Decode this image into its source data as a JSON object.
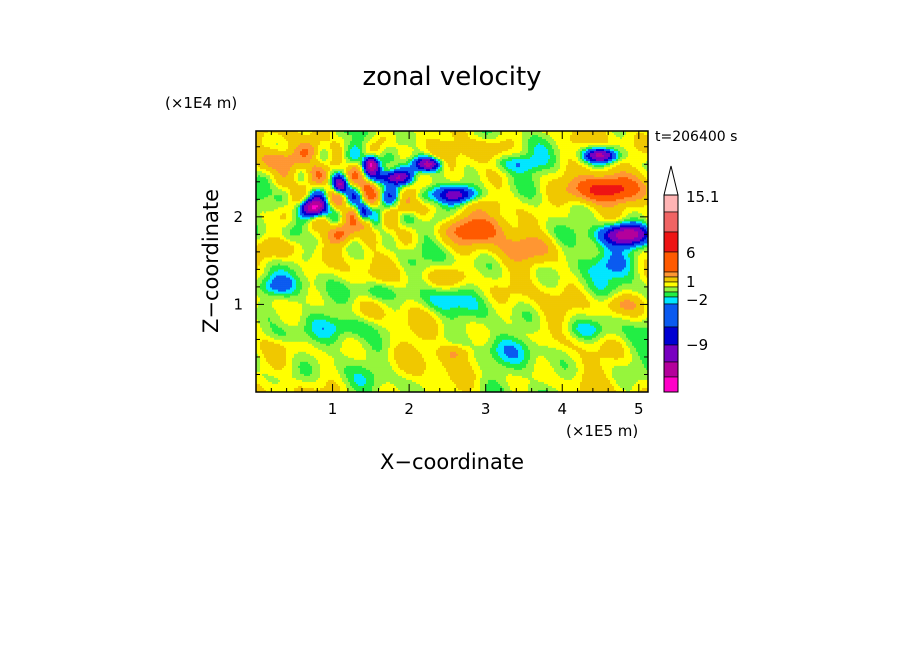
{
  "chart_data": {
    "type": "heatmap",
    "title": "zonal velocity",
    "xlabel": "X−coordinate",
    "ylabel": "Z−coordinate",
    "x_unit": "(×1E5 m)",
    "y_unit": "(×1E4 m)",
    "time_label": "t=206400 s",
    "xlim": [
      0,
      5.12
    ],
    "ylim": [
      0,
      2.98
    ],
    "x_ticks": [
      1,
      2,
      3,
      4,
      5
    ],
    "x_tick_labels": [
      "1",
      "2",
      "3",
      "4",
      "5"
    ],
    "y_ticks": [
      1,
      2
    ],
    "y_tick_labels": [
      "1",
      "2"
    ],
    "colorbar": {
      "levels": [
        "-15",
        "-12",
        "-9",
        "-6",
        "-4",
        "-2",
        "-1",
        "0",
        "1",
        "2",
        "4",
        "6",
        "9",
        "12",
        "15.1"
      ],
      "labels": [
        {
          "text": "15.1",
          "value": 15.1
        },
        {
          "text": "6",
          "value": 6
        },
        {
          "text": "1",
          "value": 1
        },
        {
          "text": "−2",
          "value": -2
        },
        {
          "text": "−9",
          "value": -9
        }
      ],
      "colors": [
        "#ff00c8",
        "#b4009b",
        "#7800c0",
        "#0000d2",
        "#0a5af0",
        "#00e6ff",
        "#22ee44",
        "#96f53c",
        "#ffff00",
        "#f0c800",
        "#ff9632",
        "#ff5a00",
        "#ee1414",
        "#f06464",
        "#ffb4b4"
      ],
      "extend_max": true
    },
    "field_features": [
      {
        "x": 0.3,
        "z": 2.65,
        "value": 5,
        "sx": 0.25,
        "sz": 0.12
      },
      {
        "x": 0.7,
        "z": 2.75,
        "value": 3,
        "sx": 0.15,
        "sz": 0.1
      },
      {
        "x": 1.05,
        "z": 2.55,
        "value": 4,
        "sx": 0.12,
        "sz": 0.12
      },
      {
        "x": 1.5,
        "z": 2.6,
        "value": -12,
        "sx": 0.09,
        "sz": 0.09
      },
      {
        "x": 2.25,
        "z": 2.6,
        "value": -12,
        "sx": 0.16,
        "sz": 0.08
      },
      {
        "x": 1.8,
        "z": 2.45,
        "value": -10,
        "sx": 0.18,
        "sz": 0.08
      },
      {
        "x": 1.1,
        "z": 2.35,
        "value": -11,
        "sx": 0.1,
        "sz": 0.1
      },
      {
        "x": 1.45,
        "z": 2.35,
        "value": 4,
        "sx": 0.1,
        "sz": 0.1
      },
      {
        "x": 0.75,
        "z": 2.1,
        "value": -13,
        "sx": 0.17,
        "sz": 0.1
      },
      {
        "x": 1.4,
        "z": 2.05,
        "value": -7,
        "sx": 0.08,
        "sz": 0.1
      },
      {
        "x": 2.0,
        "z": 2.1,
        "value": 3,
        "sx": 0.25,
        "sz": 0.1
      },
      {
        "x": 1.1,
        "z": 1.8,
        "value": 4,
        "sx": 0.18,
        "sz": 0.1
      },
      {
        "x": 1.45,
        "z": 1.95,
        "value": 4,
        "sx": 0.1,
        "sz": 0.12
      },
      {
        "x": 0.3,
        "z": 1.65,
        "value": 3,
        "sx": 0.35,
        "sz": 0.12
      },
      {
        "x": 2.6,
        "z": 2.25,
        "value": -9,
        "sx": 0.3,
        "sz": 0.1
      },
      {
        "x": 3.05,
        "z": 2.8,
        "value": 3,
        "sx": 0.3,
        "sz": 0.12
      },
      {
        "x": 4.5,
        "z": 2.7,
        "value": -11,
        "sx": 0.2,
        "sz": 0.08
      },
      {
        "x": 3.4,
        "z": 2.6,
        "value": -3,
        "sx": 0.35,
        "sz": 0.1
      },
      {
        "x": 4.5,
        "z": 2.3,
        "value": 9,
        "sx": 0.5,
        "sz": 0.15
      },
      {
        "x": 4.85,
        "z": 1.8,
        "value": -13,
        "sx": 0.3,
        "sz": 0.12
      },
      {
        "x": 2.85,
        "z": 1.85,
        "value": 7,
        "sx": 0.4,
        "sz": 0.15
      },
      {
        "x": 3.6,
        "z": 1.65,
        "value": 3,
        "sx": 0.4,
        "sz": 0.15
      },
      {
        "x": 2.55,
        "z": 1.3,
        "value": 3,
        "sx": 0.3,
        "sz": 0.15
      },
      {
        "x": 2.45,
        "z": 1.1,
        "value": -3,
        "sx": 0.25,
        "sz": 0.18
      },
      {
        "x": 1.6,
        "z": 1.15,
        "value": -2.5,
        "sx": 0.3,
        "sz": 0.12
      },
      {
        "x": 0.25,
        "z": 1.2,
        "value": -3,
        "sx": 0.25,
        "sz": 0.12
      },
      {
        "x": 4.6,
        "z": 1.45,
        "value": -3,
        "sx": 0.4,
        "sz": 0.15
      },
      {
        "x": 4.8,
        "z": 1.0,
        "value": 3,
        "sx": 0.3,
        "sz": 0.12
      },
      {
        "x": 4.3,
        "z": 0.7,
        "value": -2,
        "sx": 0.35,
        "sz": 0.12
      },
      {
        "x": 0.35,
        "z": 0.65,
        "value": -2,
        "sx": 0.35,
        "sz": 0.12
      },
      {
        "x": 0.25,
        "z": 0.15,
        "value": -1.5,
        "sx": 0.4,
        "sz": 0.12
      },
      {
        "x": 3.5,
        "z": 0.5,
        "value": -1.5,
        "sx": 0.5,
        "sz": 0.15
      },
      {
        "x": 1.3,
        "z": 0.75,
        "value": -1.5,
        "sx": 0.4,
        "sz": 0.12
      },
      {
        "x": 2.6,
        "z": 0.45,
        "value": 3,
        "sx": 0.2,
        "sz": 0.1
      }
    ]
  }
}
